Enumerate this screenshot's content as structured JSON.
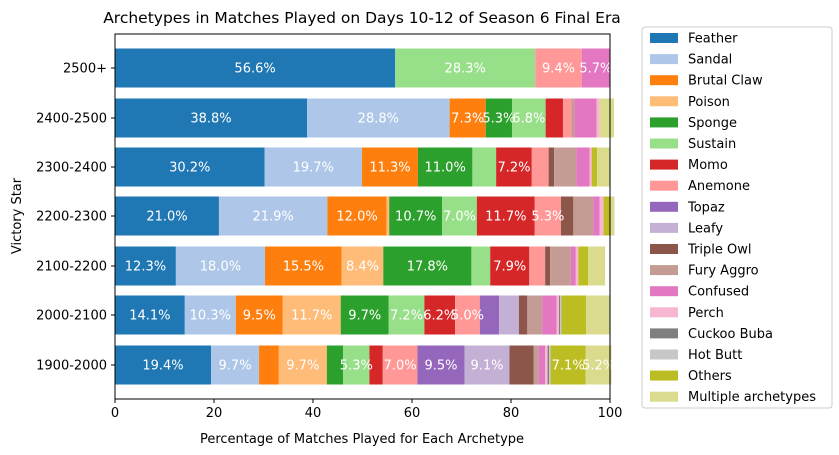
{
  "chart_data": {
    "type": "bar",
    "orientation": "horizontal",
    "stacked": true,
    "title": "Archetypes in Matches Played on Days 10-12 of Season 6 Final Era",
    "xlabel": "Percentage of Matches Played for Each Archetype",
    "ylabel": "Victory Star",
    "xlim": [
      0,
      100
    ],
    "xticks": [
      "0",
      "20",
      "40",
      "60",
      "80",
      "100"
    ],
    "grid": false,
    "legend_position": "outside-right",
    "categories": [
      "2500+",
      "2400-2500",
      "2300-2400",
      "2200-2300",
      "2100-2200",
      "2000-2100",
      "1900-2000"
    ],
    "series": [
      {
        "name": "Feather",
        "color": "#1f77b4",
        "values": [
          56.6,
          38.8,
          30.2,
          21.0,
          12.3,
          14.1,
          19.4
        ]
      },
      {
        "name": "Sandal",
        "color": "#aec7e8",
        "values": [
          0,
          28.8,
          19.7,
          21.9,
          18.0,
          10.3,
          9.7
        ]
      },
      {
        "name": "Brutal Claw",
        "color": "#ff7f0e",
        "values": [
          0,
          7.3,
          11.3,
          12.0,
          15.5,
          9.5,
          4.0
        ]
      },
      {
        "name": "Poison",
        "color": "#ffbb78",
        "values": [
          0,
          0,
          0,
          0.5,
          8.4,
          11.7,
          9.7
        ]
      },
      {
        "name": "Sponge",
        "color": "#2ca02c",
        "values": [
          0,
          5.3,
          11.0,
          10.7,
          17.8,
          9.7,
          3.3
        ]
      },
      {
        "name": "Sustain",
        "color": "#98df8a",
        "values": [
          28.3,
          6.8,
          4.8,
          7.0,
          3.8,
          7.2,
          5.3
        ]
      },
      {
        "name": "Momo",
        "color": "#d62728",
        "values": [
          0,
          3.5,
          7.2,
          11.7,
          7.9,
          6.2,
          2.7
        ]
      },
      {
        "name": "Anemone",
        "color": "#ff9896",
        "values": [
          9.4,
          1.7,
          3.4,
          5.3,
          3.2,
          5.0,
          7.0
        ]
      },
      {
        "name": "Topaz",
        "color": "#9467bd",
        "values": [
          0,
          0,
          0,
          0,
          0,
          3.9,
          9.5
        ]
      },
      {
        "name": "Leafy",
        "color": "#c5b0d5",
        "values": [
          0,
          0,
          0,
          0,
          0,
          4.0,
          9.1
        ]
      },
      {
        "name": "Triple Owl",
        "color": "#8c564b",
        "values": [
          0,
          0,
          1.1,
          2.5,
          1.0,
          1.7,
          4.9
        ]
      },
      {
        "name": "Fury Aggro",
        "color": "#c49c94",
        "values": [
          0,
          0.6,
          4.5,
          4.0,
          4.2,
          3.0,
          1.0
        ]
      },
      {
        "name": "Confused",
        "color": "#e377c2",
        "values": [
          5.7,
          4.5,
          2.7,
          1.3,
          1.0,
          2.9,
          1.3
        ]
      },
      {
        "name": "Perch",
        "color": "#f7b6d2",
        "values": [
          0,
          0.6,
          0.4,
          0.8,
          0.5,
          0.5,
          0.5
        ]
      },
      {
        "name": "Cuckoo Buba",
        "color": "#7f7f7f",
        "values": [
          0,
          0,
          0,
          0,
          0,
          0.2,
          0.3
        ]
      },
      {
        "name": "Hot Butt",
        "color": "#c7c7c7",
        "values": [
          0,
          0,
          0,
          0,
          0,
          0.3,
          0.3
        ]
      },
      {
        "name": "Others",
        "color": "#bcbd22",
        "values": [
          0,
          0,
          1.1,
          1.3,
          2.0,
          5.0,
          7.1
        ]
      },
      {
        "name": "Multiple archetypes",
        "color": "#dbdb8d",
        "values": [
          0,
          2.9,
          2.6,
          0.9,
          3.4,
          4.8,
          5.2
        ]
      }
    ],
    "bar_labels": [
      {
        "category": "2500+",
        "series": "Feather",
        "text": "56.6%",
        "color": "#ffffff"
      },
      {
        "category": "2500+",
        "series": "Sustain",
        "text": "28.3%",
        "color": "#ffffff"
      },
      {
        "category": "2500+",
        "series": "Anemone",
        "text": "9.4%",
        "color": "#ffffff"
      },
      {
        "category": "2500+",
        "series": "Confused",
        "text": "5.7%",
        "color": "#ffffff"
      },
      {
        "category": "2400-2500",
        "series": "Feather",
        "text": "38.8%",
        "color": "#ffffff"
      },
      {
        "category": "2400-2500",
        "series": "Sandal",
        "text": "28.8%",
        "color": "#ffffff"
      },
      {
        "category": "2400-2500",
        "series": "Brutal Claw",
        "text": "7.3%",
        "color": "#ffffff"
      },
      {
        "category": "2400-2500",
        "series": "Sponge",
        "text": "5.3%",
        "color": "#ffffff"
      },
      {
        "category": "2400-2500",
        "series": "Sustain",
        "text": "6.8%",
        "color": "#ffffff"
      },
      {
        "category": "2300-2400",
        "series": "Feather",
        "text": "30.2%",
        "color": "#ffffff"
      },
      {
        "category": "2300-2400",
        "series": "Sandal",
        "text": "19.7%",
        "color": "#ffffff"
      },
      {
        "category": "2300-2400",
        "series": "Brutal Claw",
        "text": "11.3%",
        "color": "#ffffff"
      },
      {
        "category": "2300-2400",
        "series": "Sponge",
        "text": "11.0%",
        "color": "#ffffff"
      },
      {
        "category": "2300-2400",
        "series": "Momo",
        "text": "7.2%",
        "color": "#ffffff"
      },
      {
        "category": "2200-2300",
        "series": "Feather",
        "text": "21.0%",
        "color": "#ffffff"
      },
      {
        "category": "2200-2300",
        "series": "Sandal",
        "text": "21.9%",
        "color": "#ffffff"
      },
      {
        "category": "2200-2300",
        "series": "Brutal Claw",
        "text": "12.0%",
        "color": "#ffffff"
      },
      {
        "category": "2200-2300",
        "series": "Sponge",
        "text": "10.7%",
        "color": "#ffffff"
      },
      {
        "category": "2200-2300",
        "series": "Sustain",
        "text": "7.0%",
        "color": "#ffffff"
      },
      {
        "category": "2200-2300",
        "series": "Momo",
        "text": "11.7%",
        "color": "#ffffff"
      },
      {
        "category": "2200-2300",
        "series": "Anemone",
        "text": "5.3%",
        "color": "#ffffff"
      },
      {
        "category": "2100-2200",
        "series": "Feather",
        "text": "12.3%",
        "color": "#ffffff"
      },
      {
        "category": "2100-2200",
        "series": "Sandal",
        "text": "18.0%",
        "color": "#ffffff"
      },
      {
        "category": "2100-2200",
        "series": "Brutal Claw",
        "text": "15.5%",
        "color": "#ffffff"
      },
      {
        "category": "2100-2200",
        "series": "Poison",
        "text": "8.4%",
        "color": "#ffffff"
      },
      {
        "category": "2100-2200",
        "series": "Sponge",
        "text": "17.8%",
        "color": "#ffffff"
      },
      {
        "category": "2100-2200",
        "series": "Momo",
        "text": "7.9%",
        "color": "#ffffff"
      },
      {
        "category": "2000-2100",
        "series": "Feather",
        "text": "14.1%",
        "color": "#ffffff"
      },
      {
        "category": "2000-2100",
        "series": "Sandal",
        "text": "10.3%",
        "color": "#ffffff"
      },
      {
        "category": "2000-2100",
        "series": "Brutal Claw",
        "text": "9.5%",
        "color": "#ffffff"
      },
      {
        "category": "2000-2100",
        "series": "Poison",
        "text": "11.7%",
        "color": "#ffffff"
      },
      {
        "category": "2000-2100",
        "series": "Sponge",
        "text": "9.7%",
        "color": "#ffffff"
      },
      {
        "category": "2000-2100",
        "series": "Sustain",
        "text": "7.2%",
        "color": "#ffffff"
      },
      {
        "category": "2000-2100",
        "series": "Momo",
        "text": "6.2%",
        "color": "#ffffff"
      },
      {
        "category": "2000-2100",
        "series": "Anemone",
        "text": "5.0%",
        "color": "#ffffff"
      },
      {
        "category": "1900-2000",
        "series": "Feather",
        "text": "19.4%",
        "color": "#ffffff"
      },
      {
        "category": "1900-2000",
        "series": "Sandal",
        "text": "9.7%",
        "color": "#ffffff"
      },
      {
        "category": "1900-2000",
        "series": "Poison",
        "text": "9.7%",
        "color": "#ffffff"
      },
      {
        "category": "1900-2000",
        "series": "Sustain",
        "text": "5.3%",
        "color": "#ffffff"
      },
      {
        "category": "1900-2000",
        "series": "Anemone",
        "text": "7.0%",
        "color": "#ffffff"
      },
      {
        "category": "1900-2000",
        "series": "Topaz",
        "text": "9.5%",
        "color": "#ffffff"
      },
      {
        "category": "1900-2000",
        "series": "Leafy",
        "text": "9.1%",
        "color": "#ffffff"
      },
      {
        "category": "1900-2000",
        "series": "Others",
        "text": "7.1%",
        "color": "#ffffff"
      },
      {
        "category": "1900-2000",
        "series": "Multiple archetypes",
        "text": "5.2%",
        "color": "#ffffff"
      }
    ]
  }
}
